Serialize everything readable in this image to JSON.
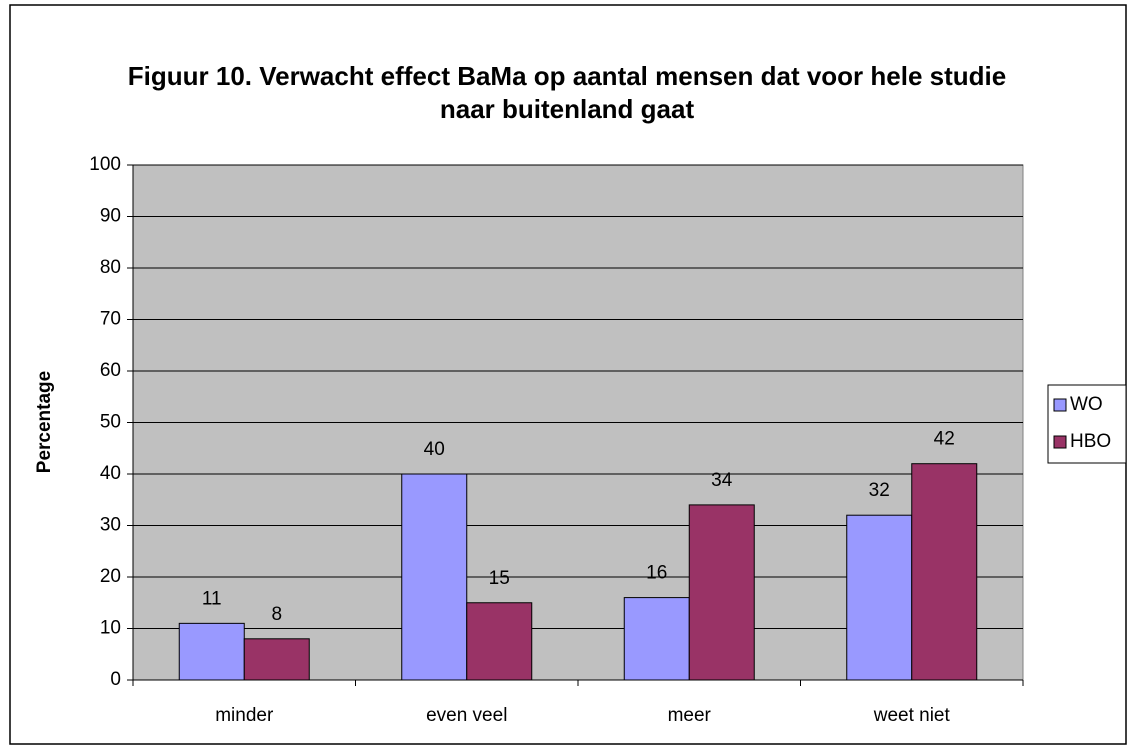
{
  "chart_data": {
    "type": "bar",
    "title": "Figuur 10. Verwacht effect BaMa op aantal mensen dat voor hele studie naar buitenland gaat",
    "y_label": "Percentage",
    "categories": [
      "minder",
      "even veel",
      "meer",
      "weet niet"
    ],
    "series": [
      {
        "name": "WO",
        "color": "#9999ff",
        "values": [
          11,
          40,
          16,
          32
        ]
      },
      {
        "name": "HBO",
        "color": "#993366",
        "values": [
          8,
          15,
          34,
          42
        ]
      }
    ],
    "ylim": [
      0,
      100
    ],
    "yticks": [
      0,
      10,
      20,
      30,
      40,
      50,
      60,
      70,
      80,
      90,
      100
    ],
    "grid": true,
    "legend": "right",
    "plot_background": "#c0c0c0"
  }
}
